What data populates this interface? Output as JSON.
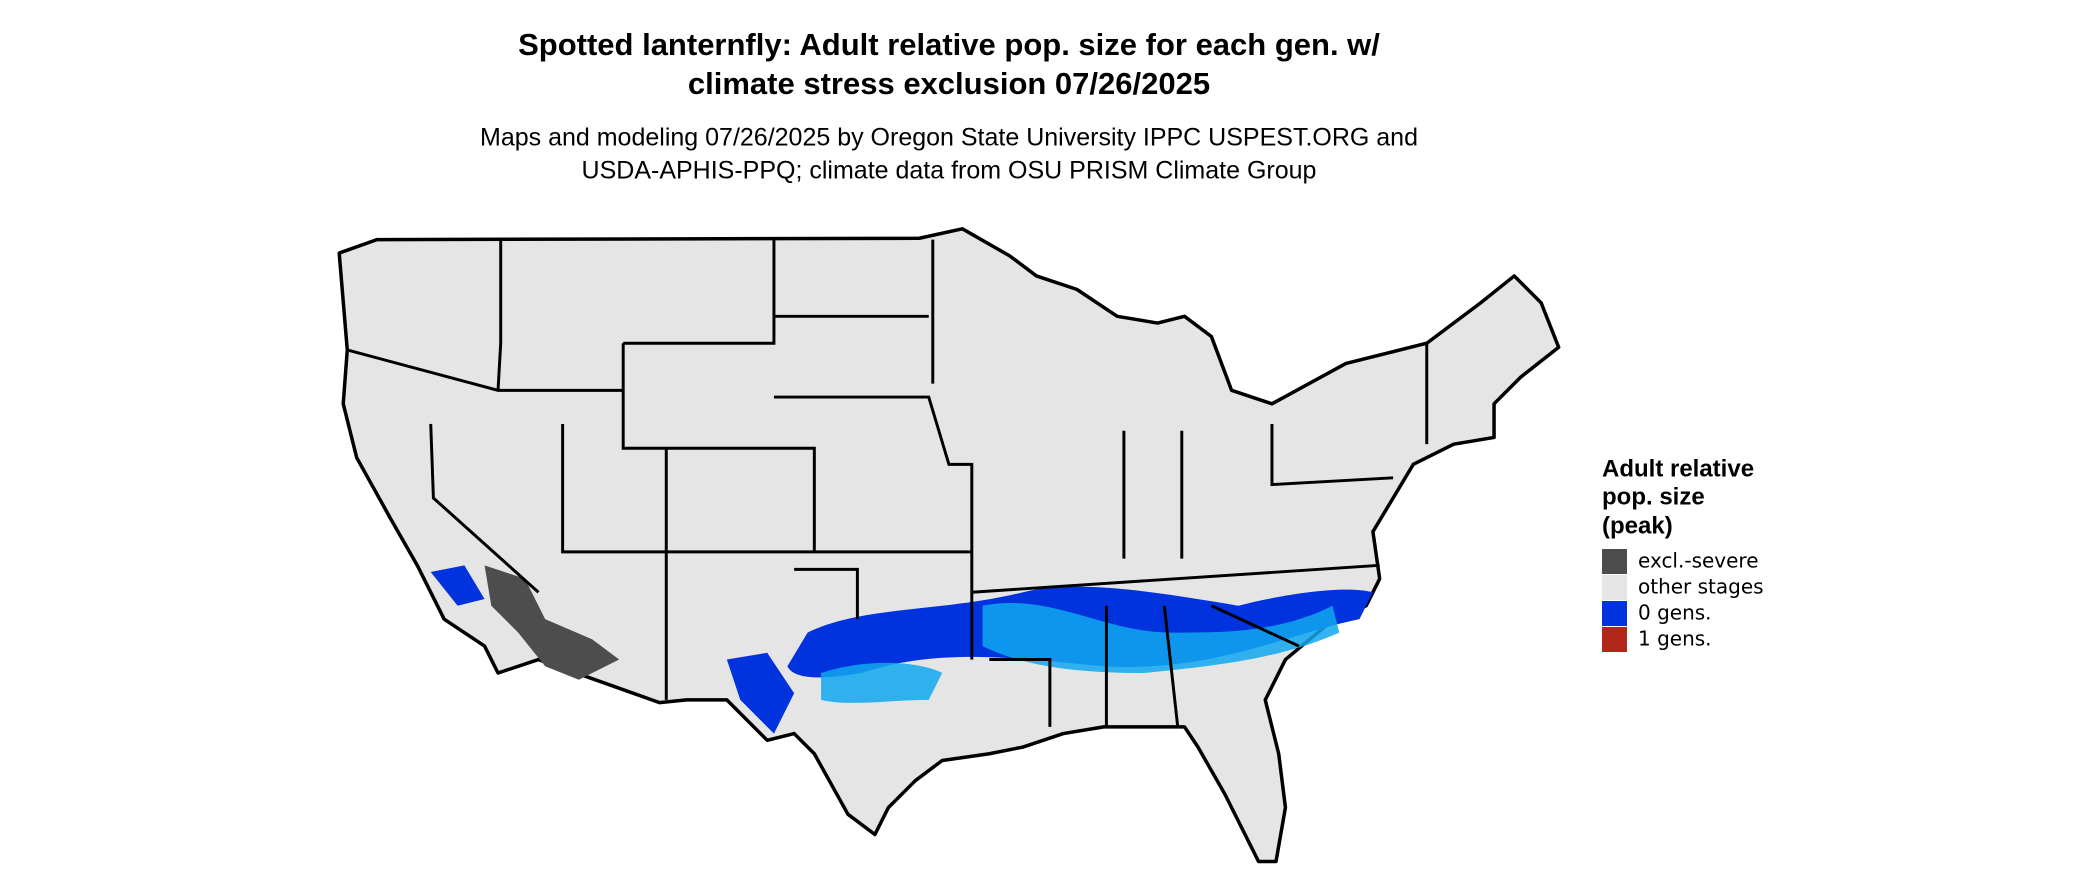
{
  "title": [
    "Spotted lanternfly: Adult relative pop. size for each gen. w/",
    "climate stress exclusion 07/26/2025"
  ],
  "subtitle": [
    "Maps and modeling 07/26/2025 by Oregon State University IPPC USPEST.ORG and",
    "USDA-APHIS-PPQ; climate data from OSU PRISM Climate Group"
  ],
  "legend": {
    "title": [
      "Adult relative",
      "pop. size",
      "(peak)"
    ],
    "items": [
      {
        "label": "excl.-severe",
        "color": "#4d4d4d"
      },
      {
        "label": "other stages",
        "color": "#e5e5e5"
      },
      {
        "label": "0 gens.",
        "color": "#0033dd"
      },
      {
        "label": "1 gens.",
        "color": "#b22818"
      }
    ]
  }
}
